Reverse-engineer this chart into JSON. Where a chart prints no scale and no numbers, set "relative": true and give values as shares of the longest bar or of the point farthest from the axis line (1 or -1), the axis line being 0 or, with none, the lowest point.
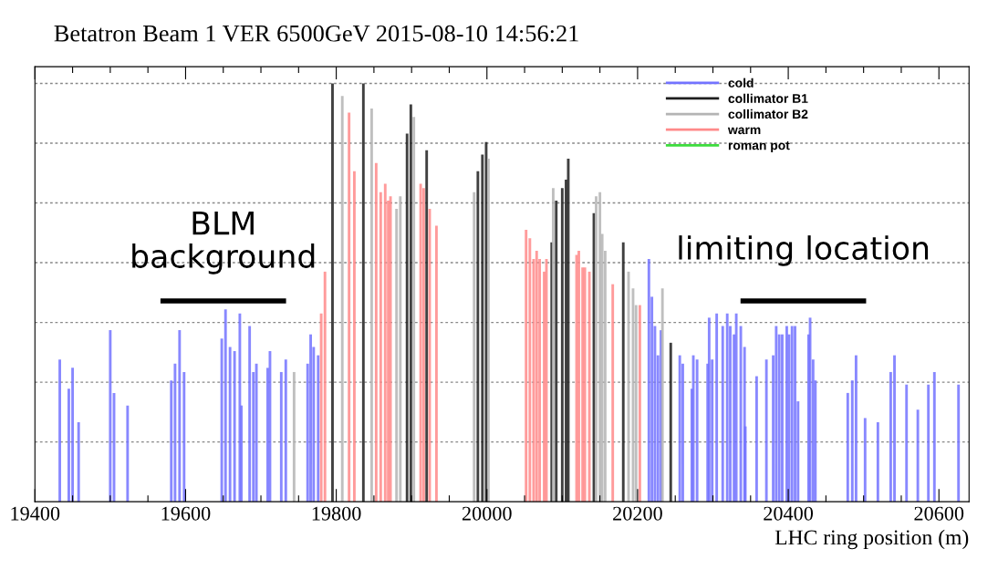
{
  "chart_data": {
    "type": "bar",
    "title": "Betatron Beam 1 VER 6500GeV 2015-08-10 14:56:21",
    "xlabel": "LHC ring position (m)",
    "relative": true,
    "grid": "y",
    "legend": "top right",
    "xlim": [
      19400,
      20640
    ],
    "xticks": [
      19400,
      {
        "value": 19450,
        "label": null
      },
      {
        "value": 19500,
        "label": null
      },
      {
        "value": 19550,
        "label": null
      },
      19600,
      {
        "value": 19650,
        "label": null
      },
      {
        "value": 19700,
        "label": null
      },
      {
        "value": 19750,
        "label": null
      },
      19800,
      {
        "value": 19850,
        "label": null
      },
      {
        "value": 19900,
        "label": null
      },
      {
        "value": 19950,
        "label": null
      },
      20000,
      {
        "value": 20050,
        "label": null
      },
      {
        "value": 20100,
        "label": null
      },
      {
        "value": 20150,
        "label": null
      },
      20200,
      {
        "value": 20250,
        "label": null
      },
      {
        "value": 20300,
        "label": null
      },
      {
        "value": 20350,
        "label": null
      },
      20400,
      {
        "value": 20450,
        "label": null
      },
      {
        "value": 20500,
        "label": null
      },
      {
        "value": 20550,
        "label": null
      },
      20600
    ],
    "annotations": [
      "BLM background",
      "limiting location"
    ],
    "series": [
      {
        "name": "cold",
        "color": "#7373ff",
        "x": [
          19433,
          19445,
          19450,
          19458,
          19500,
          19505,
          19523,
          19581,
          19586,
          19592,
          19598,
          19648,
          19653,
          19659,
          19665,
          19672,
          19674,
          19685,
          19690,
          19694,
          19709,
          19712,
          19727,
          19733,
          19762,
          19766,
          19770,
          19776,
          20215,
          20219,
          20223,
          20227,
          20231,
          20256,
          20260,
          20272,
          20274,
          20279,
          20293,
          20295,
          20299,
          20305,
          20313,
          20319,
          20323,
          20328,
          20331,
          20337,
          20342,
          20343,
          20358,
          20371,
          20380,
          20384,
          20388,
          20392,
          20398,
          20401,
          20405,
          20409,
          20413,
          20427,
          20429,
          20433,
          20436,
          20479,
          20485,
          20490,
          20502,
          20519,
          20536,
          20541,
          20557,
          20572,
          20586,
          20594,
          20626
        ],
        "values": [
          0.34,
          0.27,
          0.32,
          0.19,
          0.41,
          0.26,
          0.23,
          0.29,
          0.33,
          0.41,
          0.31,
          0.39,
          0.46,
          0.37,
          0.36,
          0.45,
          0.23,
          0.42,
          0.31,
          0.33,
          0.32,
          0.36,
          0.31,
          0.34,
          0.33,
          0.4,
          0.37,
          0.35,
          0.58,
          0.49,
          0.42,
          0.35,
          0.41,
          0.35,
          0.33,
          0.27,
          0.35,
          0.34,
          0.33,
          0.44,
          0.34,
          0.45,
          0.42,
          0.45,
          0.42,
          0.4,
          0.45,
          0.42,
          0.37,
          0.18,
          0.3,
          0.34,
          0.35,
          0.42,
          0.4,
          0.4,
          0.42,
          0.4,
          0.42,
          0.42,
          0.24,
          0.4,
          0.44,
          0.34,
          0.29,
          0.26,
          0.29,
          0.35,
          0.2,
          0.19,
          0.31,
          0.35,
          0.28,
          0.22,
          0.28,
          0.31,
          0.28
        ]
      },
      {
        "name": "collimator B1",
        "color": "#1e1e1e",
        "x": [
          19795,
          19836,
          19894,
          19899,
          19920,
          19988,
          19994,
          19999,
          20086,
          20092,
          20100,
          20105,
          20108,
          20142,
          20181,
          20244
        ],
        "values": [
          1.0,
          1.0,
          0.88,
          0.95,
          0.84,
          0.79,
          0.83,
          0.86,
          0.62,
          0.72,
          0.75,
          0.77,
          0.82,
          0.69,
          0.62,
          0.38
        ]
      },
      {
        "name": "collimator B2",
        "color": "#b4b4b4",
        "x": [
          19744,
          19808,
          19847,
          19880,
          19885,
          19903,
          19983,
          20002,
          20088,
          20145,
          20150,
          20153,
          20157,
          20188,
          20194,
          20198,
          20233
        ],
        "values": [
          0.31,
          0.97,
          0.94,
          0.7,
          0.73,
          0.92,
          0.74,
          0.82,
          0.75,
          0.73,
          0.74,
          0.64,
          0.6,
          0.55,
          0.51,
          0.47,
          0.51
        ]
      },
      {
        "name": "warm",
        "color": "#ff8a8a",
        "x": [
          19780,
          19785,
          19817,
          19824,
          19853,
          19859,
          19865,
          19869,
          19872,
          19912,
          19916,
          19924,
          19933,
          20052,
          20057,
          20062,
          20066,
          20070,
          20076,
          20079,
          20119,
          20122,
          20127,
          20130,
          20136,
          20167,
          20203
        ],
        "values": [
          0.45,
          0.55,
          0.93,
          0.79,
          0.81,
          0.74,
          0.76,
          0.72,
          0.73,
          0.76,
          0.75,
          0.7,
          0.66,
          0.65,
          0.63,
          0.58,
          0.6,
          0.58,
          0.55,
          0.58,
          0.59,
          0.6,
          0.56,
          0.56,
          0.55,
          0.52,
          0.47
        ]
      },
      {
        "name": "roman pot",
        "color": "#3ddc3d"
      }
    ]
  }
}
